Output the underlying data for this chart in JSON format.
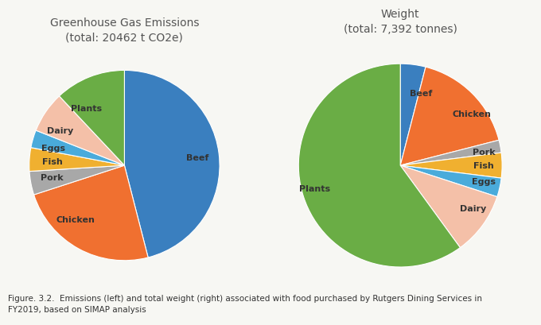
{
  "left_title": "Greenhouse Gas Emissions\n(total: 20462 t CO2e)",
  "right_title": "Weight\n(total: 7,392 tonnes)",
  "caption": "Figure. 3.2.  Emissions (left) and total weight (right) associated with food purchased by Rutgers Dining Services in\nFY2019, based on SIMAP analysis",
  "categories": [
    "Beef",
    "Chicken",
    "Pork",
    "Fish",
    "Eggs",
    "Dairy",
    "Plants"
  ],
  "colors": {
    "Beef": "#3A7FBF",
    "Chicken": "#F07030",
    "Pork": "#A8A8A8",
    "Fish": "#F0B030",
    "Eggs": "#4AABDB",
    "Dairy": "#F4C0A8",
    "Plants": "#6AAD45"
  },
  "emissions_values": [
    46,
    24,
    4,
    4,
    3,
    7,
    12
  ],
  "weight_values": [
    4,
    17,
    2,
    4,
    3,
    10,
    60
  ],
  "background_color": "#F7F7F3",
  "label_fontsize": 8,
  "title_fontsize": 10,
  "caption_fontsize": 7.5
}
